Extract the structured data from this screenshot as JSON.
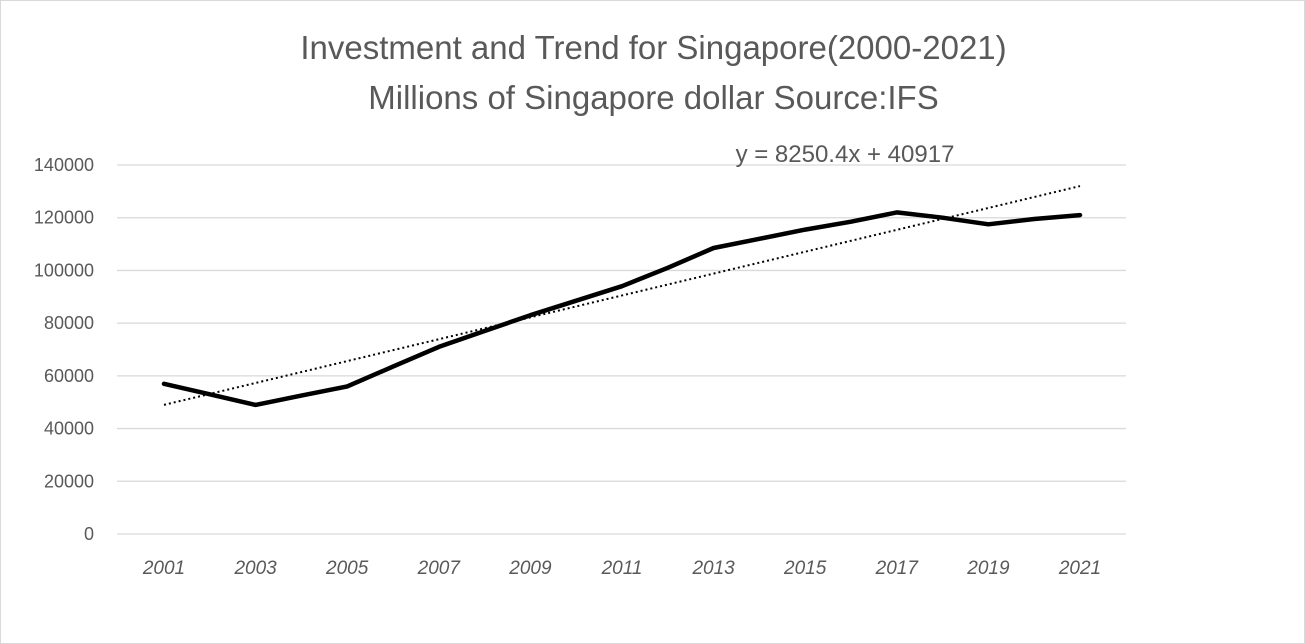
{
  "chart_data": {
    "type": "line",
    "title": "Investment and Trend for Singapore(2000-2021)",
    "subtitle": "Millions of Singapore dollar  Source:IFS",
    "xlabel": "",
    "ylabel": "",
    "categories": [
      "2001",
      "2002",
      "2003",
      "2004",
      "2005",
      "2006",
      "2007",
      "2008",
      "2009",
      "2010",
      "2011",
      "2012",
      "2013",
      "2014",
      "2015",
      "2016",
      "2017",
      "2018",
      "2019",
      "2020",
      "2021"
    ],
    "x_tick_labels": [
      "2001",
      "2003",
      "2005",
      "2007",
      "2009",
      "2011",
      "2013",
      "2015",
      "2017",
      "2019",
      "2021"
    ],
    "y_ticks": [
      0,
      20000,
      40000,
      60000,
      80000,
      100000,
      120000,
      140000
    ],
    "ylim": [
      0,
      140000
    ],
    "series": [
      {
        "values": [
          57000,
          53000,
          49000,
          52500,
          56000,
          63500,
          71000,
          77000,
          83000,
          88500,
          94000,
          101000,
          108500,
          112000,
          115500,
          118500,
          122000,
          120000,
          117500,
          119500,
          121000
        ],
        "color": "#000000",
        "style": "solid"
      }
    ],
    "trendline": {
      "type": "linear",
      "slope": 8250.4,
      "intercept": 40917,
      "equation_label": "y = 8250.4x + 40917",
      "start_value": 49000,
      "end_value": 132000,
      "style": "dotted",
      "color": "#000000"
    },
    "grid": true,
    "legend": "none"
  }
}
